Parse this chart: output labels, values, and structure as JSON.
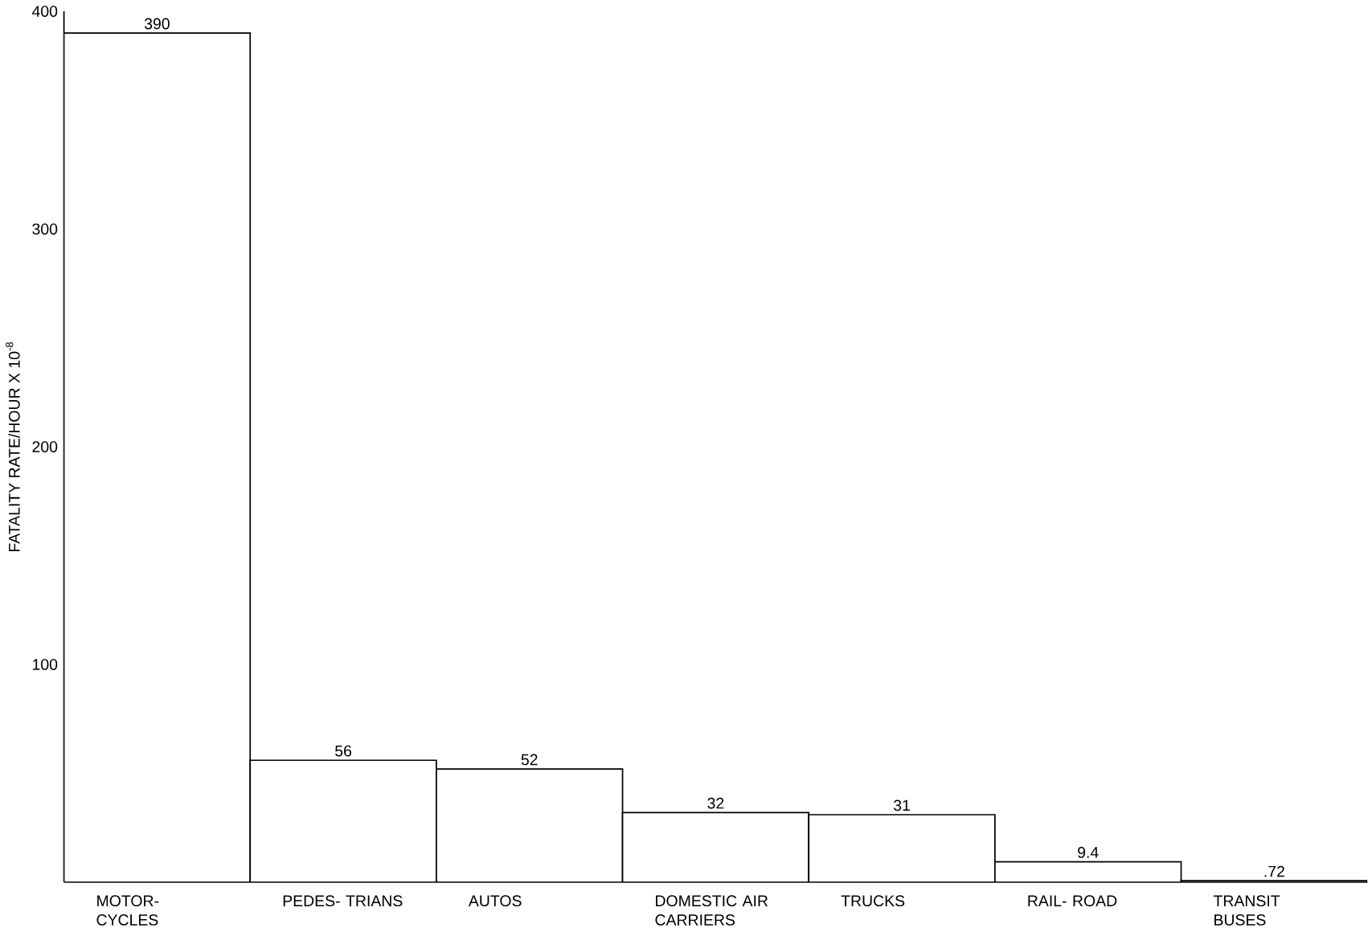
{
  "chart_data": {
    "type": "bar",
    "ylabel": "FATALITY RATE/HOUR X 10$^{-8}$",
    "categories": [
      "MOTOR- CYCLES",
      "PEDES- TRIANS",
      "AUTOS",
      "DOMESTIC AIR CARRIERS",
      "TRUCKS",
      "RAIL- ROAD",
      "TRANSIT BUSES"
    ],
    "values": [
      390,
      56,
      52,
      32,
      31,
      9.4,
      0.72
    ],
    "value_labels": [
      "390",
      "56",
      "52",
      "32",
      "31",
      "9.4",
      ".72"
    ],
    "color": "#000000",
    "ylim": [
      0,
      400
    ],
    "yticks": [
      100,
      200,
      300,
      400
    ]
  }
}
